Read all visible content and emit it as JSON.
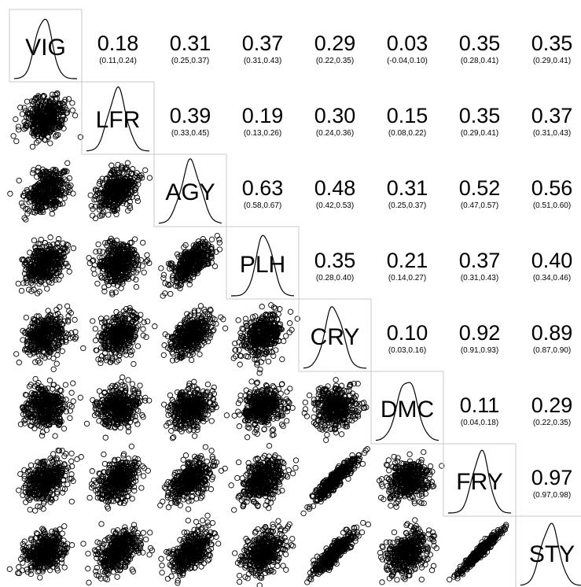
{
  "chart_data": {
    "type": "scatter-matrix",
    "title": "",
    "variables": [
      "VIG",
      "LFR",
      "AGY",
      "PLH",
      "CRY",
      "DMC",
      "FRY",
      "STY"
    ],
    "correlations": [
      {
        "row": 0,
        "col": 1,
        "r": "0.18",
        "ci": "(0.11,0.24)"
      },
      {
        "row": 0,
        "col": 2,
        "r": "0.31",
        "ci": "(0.25,0.37)"
      },
      {
        "row": 0,
        "col": 3,
        "r": "0.37",
        "ci": "(0.31,0.43)"
      },
      {
        "row": 0,
        "col": 4,
        "r": "0.29",
        "ci": "(0.22,0.35)"
      },
      {
        "row": 0,
        "col": 5,
        "r": "0.03",
        "ci": "(-0.04,0.10)"
      },
      {
        "row": 0,
        "col": 6,
        "r": "0.35",
        "ci": "(0.28,0.41)"
      },
      {
        "row": 0,
        "col": 7,
        "r": "0.35",
        "ci": "(0.29,0.41)"
      },
      {
        "row": 1,
        "col": 2,
        "r": "0.39",
        "ci": "(0.33,0.45)"
      },
      {
        "row": 1,
        "col": 3,
        "r": "0.19",
        "ci": "(0.13,0.26)"
      },
      {
        "row": 1,
        "col": 4,
        "r": "0.30",
        "ci": "(0.24,0.36)"
      },
      {
        "row": 1,
        "col": 5,
        "r": "0.15",
        "ci": "(0.08,0.22)"
      },
      {
        "row": 1,
        "col": 6,
        "r": "0.35",
        "ci": "(0.29,0.41)"
      },
      {
        "row": 1,
        "col": 7,
        "r": "0.37",
        "ci": "(0.31,0.43)"
      },
      {
        "row": 2,
        "col": 3,
        "r": "0.63",
        "ci": "(0.58,0.67)"
      },
      {
        "row": 2,
        "col": 4,
        "r": "0.48",
        "ci": "(0.42,0.53)"
      },
      {
        "row": 2,
        "col": 5,
        "r": "0.31",
        "ci": "(0.25,0.37)"
      },
      {
        "row": 2,
        "col": 6,
        "r": "0.52",
        "ci": "(0.47,0.57)"
      },
      {
        "row": 2,
        "col": 7,
        "r": "0.56",
        "ci": "(0.51,0.60)"
      },
      {
        "row": 3,
        "col": 4,
        "r": "0.35",
        "ci": "(0.28,0.40)"
      },
      {
        "row": 3,
        "col": 5,
        "r": "0.21",
        "ci": "(0.14,0.27)"
      },
      {
        "row": 3,
        "col": 6,
        "r": "0.37",
        "ci": "(0.31,0.43)"
      },
      {
        "row": 3,
        "col": 7,
        "r": "0.40",
        "ci": "(0.34,0.46)"
      },
      {
        "row": 4,
        "col": 5,
        "r": "0.10",
        "ci": "(0.03,0.16)"
      },
      {
        "row": 4,
        "col": 6,
        "r": "0.92",
        "ci": "(0.91,0.93)"
      },
      {
        "row": 4,
        "col": 7,
        "r": "0.89",
        "ci": "(0.87,0.90)"
      },
      {
        "row": 5,
        "col": 6,
        "r": "0.11",
        "ci": "(0.04,0.18)"
      },
      {
        "row": 5,
        "col": 7,
        "r": "0.29",
        "ci": "(0.22,0.35)"
      },
      {
        "row": 6,
        "col": 7,
        "r": "0.97",
        "ci": "(0.97,0.98)"
      }
    ],
    "diagonal": "density",
    "lower": "scatter",
    "upper": "correlation with 95% CI",
    "marker": "open-circle",
    "grid": false
  }
}
